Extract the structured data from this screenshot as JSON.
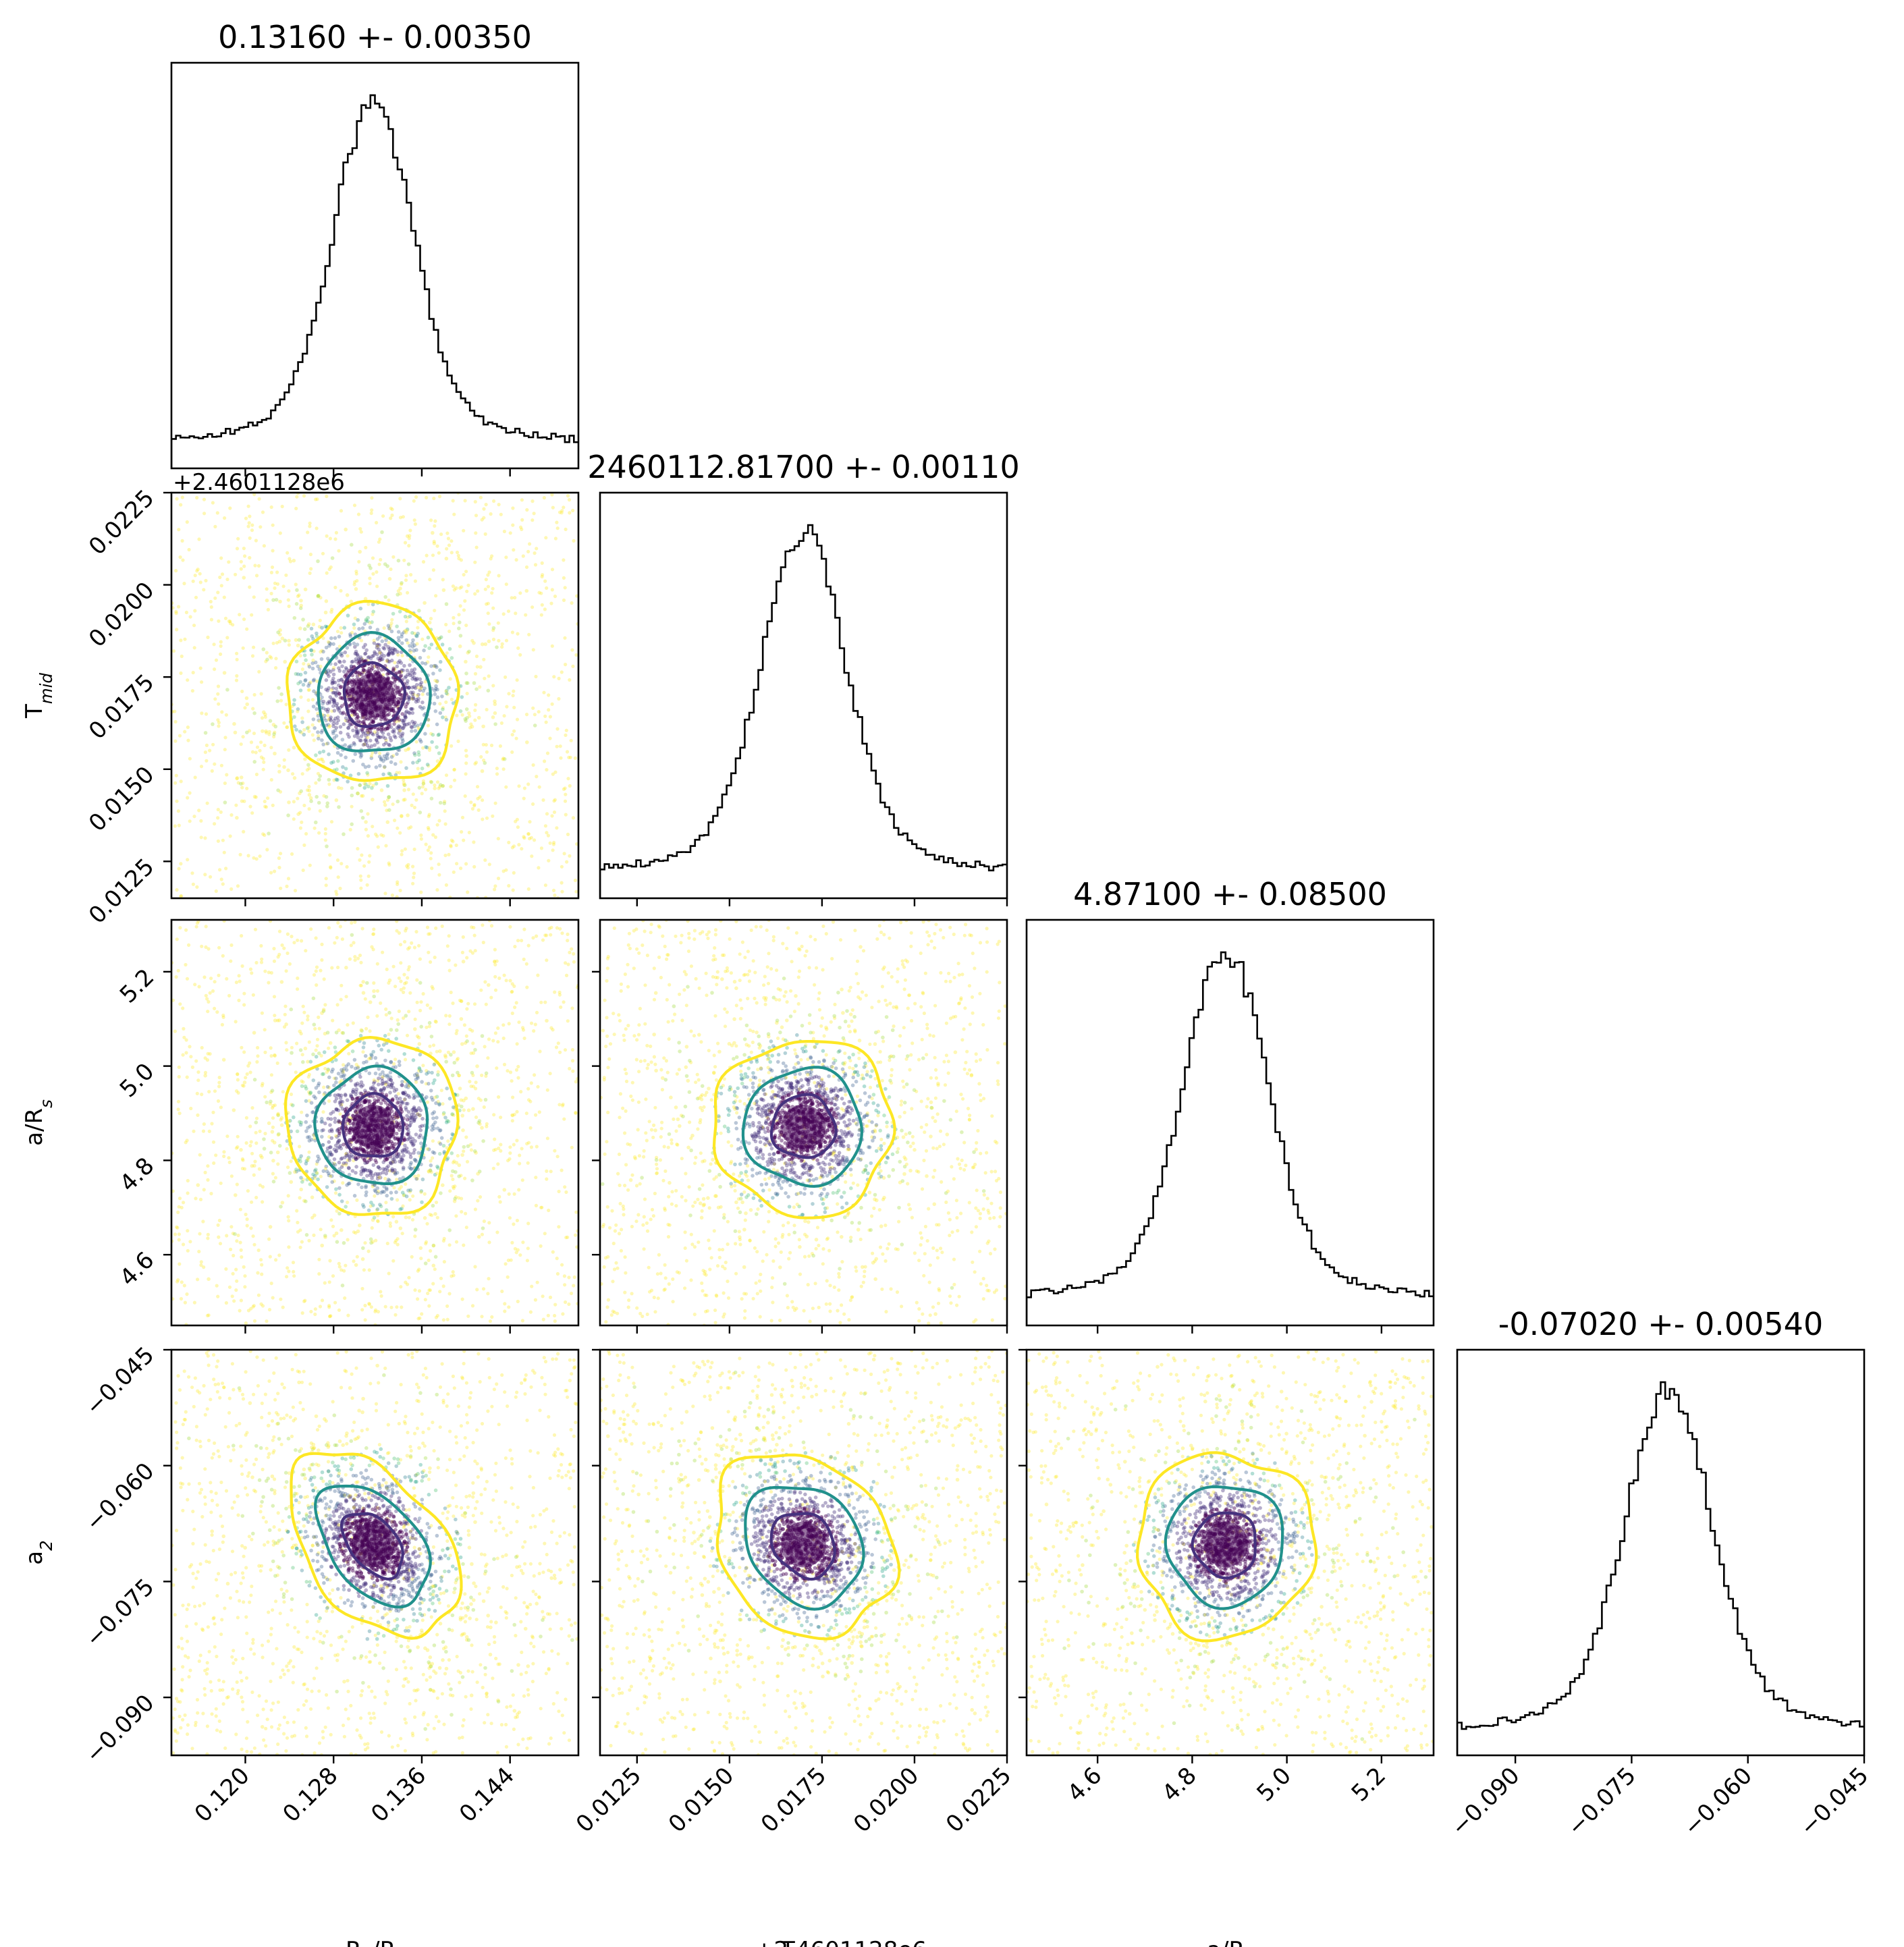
{
  "chart_data": {
    "type": "corner",
    "parameters": [
      {
        "key": "rp",
        "axis_label": "R$_p$/R$_s$",
        "title": "0.13160 +- 0.00350",
        "median": 0.1316,
        "sigma": 0.0035,
        "range": [
          0.1133,
          0.1502
        ],
        "ticks": [
          "0.120",
          "0.128",
          "0.136",
          "0.144"
        ],
        "tick_values": [
          0.12,
          0.128,
          0.136,
          0.144
        ],
        "offset_label": ""
      },
      {
        "key": "tmid",
        "axis_label": "T$_{mid}$",
        "title": "2460112.81700 +- 0.00110",
        "median": 0.017,
        "sigma": 0.0011,
        "range": [
          0.0115,
          0.0225
        ],
        "ticks": [
          "0.0125",
          "0.0150",
          "0.0175",
          "0.0200",
          "0.0225"
        ],
        "tick_values": [
          0.0125,
          0.015,
          0.0175,
          0.02,
          0.0225
        ],
        "offset_label": "+2.4601128e6"
      },
      {
        "key": "a",
        "axis_label": "a/R$_s$",
        "title": "4.87100 +- 0.08500",
        "median": 4.871,
        "sigma": 0.085,
        "range": [
          4.45,
          5.31
        ],
        "ticks": [
          "4.6",
          "4.8",
          "5.0",
          "5.2"
        ],
        "tick_values": [
          4.6,
          4.8,
          5.0,
          5.2
        ],
        "offset_label": ""
      },
      {
        "key": "a2",
        "axis_label": "a$_2$",
        "title": "-0.07020 +- 0.00540",
        "median": -0.0702,
        "sigma": 0.0054,
        "range": [
          -0.0975,
          -0.045
        ],
        "ticks": [
          "−0.090",
          "−0.075",
          "−0.060",
          "−0.045"
        ],
        "tick_values": [
          -0.09,
          -0.075,
          -0.06,
          -0.045
        ],
        "offset_label": ""
      }
    ],
    "correlations": {
      "rp-a2": -0.45,
      "tmid-a2": -0.2,
      "rp-tmid": 0.0,
      "rp-a": 0.0,
      "tmid-a": 0.0,
      "a-a2": 0.0
    },
    "contour_colors": [
      "#46327e",
      "#21918c",
      "#fde725"
    ],
    "colormap": "viridis",
    "histogram_color": "#000000",
    "grid": false,
    "legend": "none"
  }
}
